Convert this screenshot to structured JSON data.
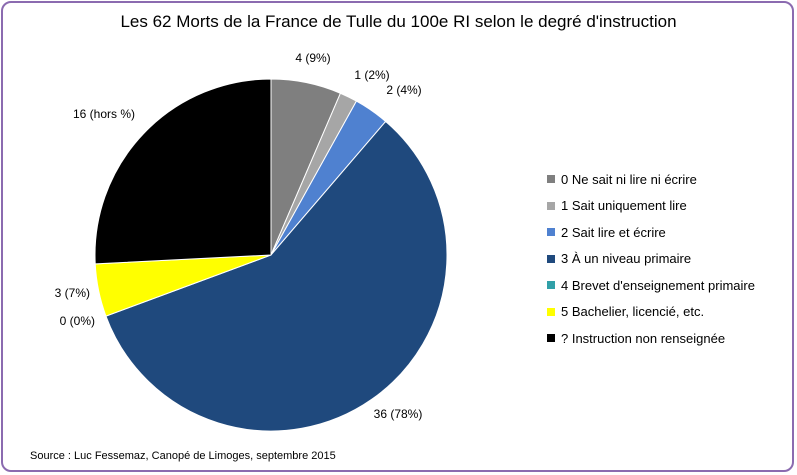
{
  "chart_data": {
    "type": "pie",
    "title": "Les 62 Morts de la France de Tulle du 100e RI selon le degré d'instruction",
    "source": "Source : Luc Fessemaz, Canopé de Limoges, septembre 2015",
    "legend_position": "right",
    "slices": [
      {
        "name": "0 Ne sait ni lire ni écrire",
        "value": 4,
        "label": "4 (9%)",
        "color": "#7f7f7f"
      },
      {
        "name": "1 Sait uniquement lire",
        "value": 1,
        "label": "1 (2%)",
        "color": "#a6a6a6"
      },
      {
        "name": "2 Sait lire et écrire",
        "value": 2,
        "label": "2 (4%)",
        "color": "#4f81d0"
      },
      {
        "name": "3 À un niveau primaire",
        "value": 36,
        "label": "36 (78%)",
        "color": "#1f497d"
      },
      {
        "name": "4 Brevet d'enseignement primaire",
        "value": 0,
        "label": "0 (0%)",
        "color": "#31a0a8"
      },
      {
        "name": "5 Bachelier, licencié, etc.",
        "value": 3,
        "label": "3 (7%)",
        "color": "#ffff00"
      },
      {
        "name": "? Instruction non renseignée",
        "value": 16,
        "label": "16 (hors %)",
        "color": "#000000"
      }
    ]
  }
}
